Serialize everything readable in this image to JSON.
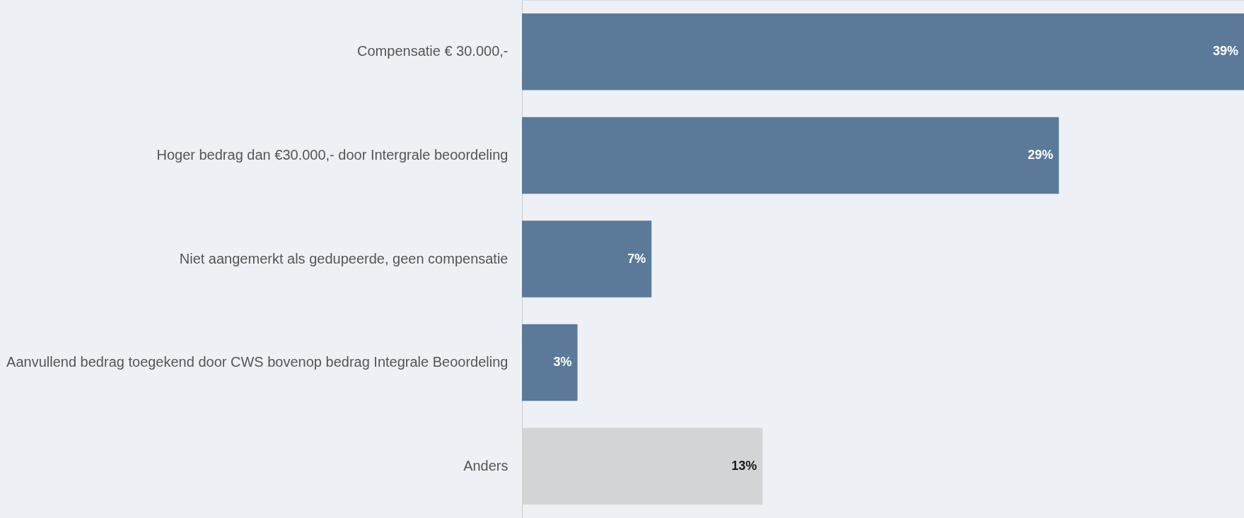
{
  "chart_data": {
    "type": "bar",
    "orientation": "horizontal",
    "categories": [
      "Compensatie € 30.000,-",
      "Hoger bedrag dan €30.000,- door Intergrale beoordeling",
      "Niet aangemerkt als gedupeerde, geen compensatie ",
      "Aanvullend bedrag toegekend door CWS bovenop bedrag Integrale Beoordeling",
      "Anders"
    ],
    "values": [
      39,
      29,
      7,
      3,
      13
    ],
    "value_labels": [
      "39%",
      "29%",
      "7%",
      "3%",
      "13%"
    ],
    "colors": [
      "#5b7a99",
      "#5b7a99",
      "#5b7a99",
      "#5b7a99",
      "#d3d4d6"
    ],
    "grid": false
  }
}
